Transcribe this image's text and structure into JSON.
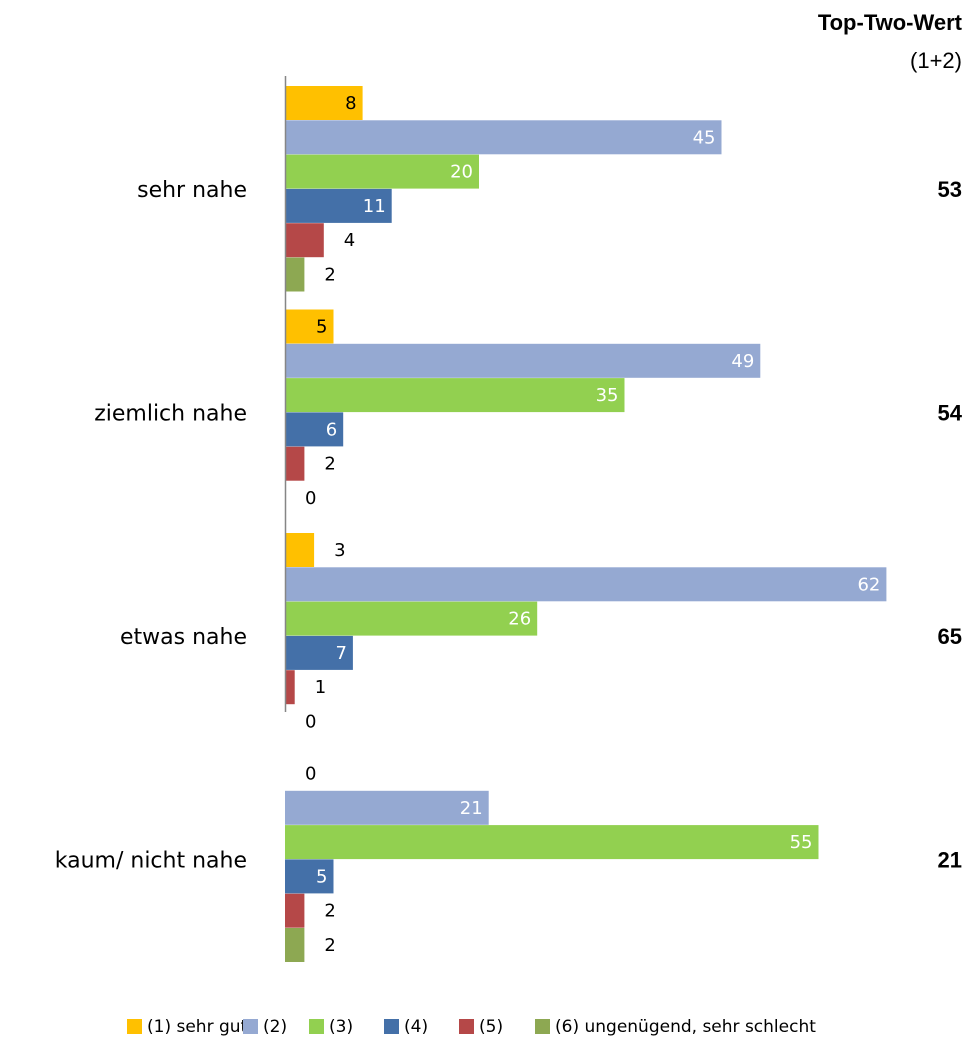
{
  "chart_data": {
    "type": "bar",
    "orientation": "horizontal",
    "header": {
      "title": "Top-Two-Wert",
      "subtitle": "(1+2)"
    },
    "categories": [
      "sehr nahe",
      "ziemlich nahe",
      "etwas nahe",
      "kaum/ nicht nahe"
    ],
    "series": [
      {
        "name": "(1) sehr gut",
        "color": "#FFC000",
        "values": [
          8,
          5,
          3,
          0
        ]
      },
      {
        "name": "(2)",
        "color": "#95A9D2",
        "values": [
          45,
          49,
          62,
          21
        ]
      },
      {
        "name": "(3)",
        "color": "#92D050",
        "values": [
          20,
          35,
          26,
          55
        ]
      },
      {
        "name": "(4)",
        "color": "#4470A8",
        "values": [
          11,
          6,
          7,
          5
        ]
      },
      {
        "name": "(5)",
        "color": "#B54848",
        "values": [
          4,
          2,
          1,
          2
        ]
      },
      {
        "name": "(6) ungenügend, sehr schlecht",
        "color": "#8DA852",
        "values": [
          2,
          0,
          0,
          2
        ]
      }
    ],
    "top_two": [
      "53",
      "54",
      "65",
      "21"
    ],
    "xlim": [
      0,
      100
    ],
    "grid": false,
    "legend_position": "bottom"
  }
}
